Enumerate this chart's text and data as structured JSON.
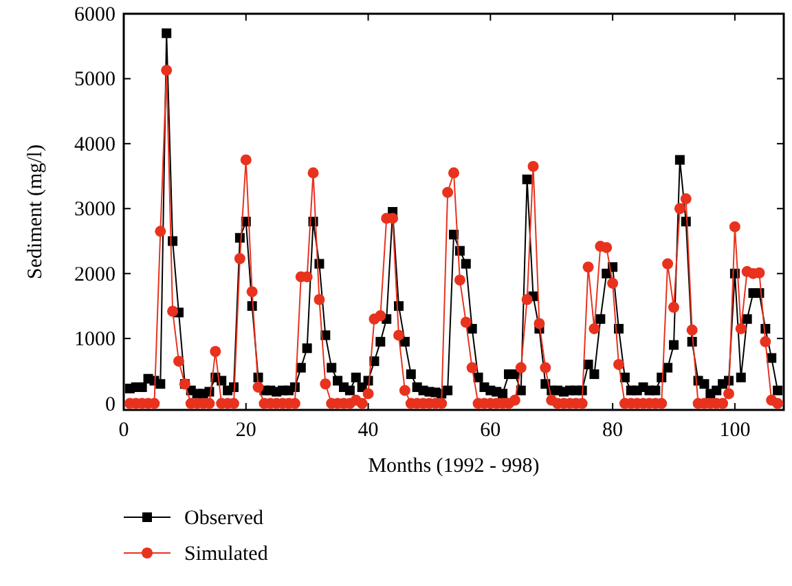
{
  "chart_data": {
    "type": "line",
    "xlabel": "Months (1992 - 998)",
    "ylabel": "Sediment (mg/l)",
    "x": [
      1,
      2,
      3,
      4,
      5,
      6,
      7,
      8,
      9,
      10,
      11,
      12,
      13,
      14,
      15,
      16,
      17,
      18,
      19,
      20,
      21,
      22,
      23,
      24,
      25,
      26,
      27,
      28,
      29,
      30,
      31,
      32,
      33,
      34,
      35,
      36,
      37,
      38,
      39,
      40,
      41,
      42,
      43,
      44,
      45,
      46,
      47,
      48,
      49,
      50,
      51,
      52,
      53,
      54,
      55,
      56,
      57,
      58,
      59,
      60,
      61,
      62,
      63,
      64,
      65,
      66,
      67,
      68,
      69,
      70,
      71,
      72,
      73,
      74,
      75,
      76,
      77,
      78,
      79,
      80,
      81,
      82,
      83,
      84,
      85,
      86,
      87,
      88,
      89,
      90,
      91,
      92,
      93,
      94,
      95,
      96,
      97,
      98,
      99,
      100,
      101,
      102,
      103,
      104,
      105,
      106,
      107
    ],
    "xlim": [
      0,
      108
    ],
    "xticks": [
      0,
      20,
      40,
      60,
      80,
      100
    ],
    "ylim": [
      -100,
      6000
    ],
    "yticks": [
      0,
      1000,
      2000,
      3000,
      4000,
      5000,
      6000
    ],
    "grid": false,
    "legend": "bottom left",
    "line_style": "solid",
    "series": [
      {
        "name": "Observed",
        "color": "#000000",
        "marker": "square",
        "values": [
          230,
          250,
          250,
          380,
          350,
          300,
          5700,
          2500,
          1400,
          300,
          200,
          150,
          150,
          180,
          400,
          350,
          200,
          250,
          2550,
          2800,
          1500,
          400,
          200,
          200,
          180,
          200,
          200,
          250,
          550,
          850,
          2800,
          2150,
          1050,
          550,
          350,
          250,
          200,
          400,
          250,
          350,
          650,
          950,
          1300,
          2950,
          1500,
          950,
          450,
          250,
          200,
          180,
          170,
          150,
          200,
          2600,
          2350,
          2150,
          1150,
          400,
          250,
          200,
          180,
          150,
          450,
          450,
          200,
          3450,
          1650,
          1150,
          300,
          200,
          200,
          180,
          200,
          200,
          200,
          600,
          450,
          1300,
          2000,
          2100,
          1150,
          400,
          200,
          200,
          250,
          200,
          200,
          400,
          550,
          900,
          3750,
          2800,
          950,
          350,
          300,
          150,
          200,
          300,
          350,
          2000,
          400,
          1300,
          1700,
          1700,
          1150,
          700,
          200
        ]
      },
      {
        "name": "Simulated",
        "color": "#e8321e",
        "marker": "circle",
        "values": [
          0,
          0,
          0,
          0,
          0,
          2650,
          5130,
          1420,
          650,
          300,
          0,
          0,
          0,
          0,
          800,
          0,
          0,
          0,
          2230,
          3750,
          1720,
          250,
          0,
          0,
          0,
          0,
          0,
          0,
          1950,
          1950,
          3550,
          1600,
          300,
          0,
          0,
          0,
          0,
          50,
          0,
          150,
          1300,
          1350,
          2850,
          2850,
          1050,
          200,
          0,
          0,
          0,
          0,
          0,
          0,
          3250,
          3550,
          1900,
          1250,
          550,
          0,
          0,
          0,
          0,
          0,
          0,
          50,
          550,
          1600,
          3650,
          1230,
          550,
          50,
          0,
          0,
          0,
          0,
          0,
          2100,
          1150,
          2420,
          2400,
          1850,
          600,
          0,
          0,
          0,
          0,
          0,
          0,
          0,
          2150,
          1480,
          3000,
          3150,
          1130,
          0,
          0,
          0,
          0,
          0,
          150,
          2720,
          1150,
          2030,
          2000,
          2010,
          950,
          50,
          0
        ]
      }
    ]
  }
}
